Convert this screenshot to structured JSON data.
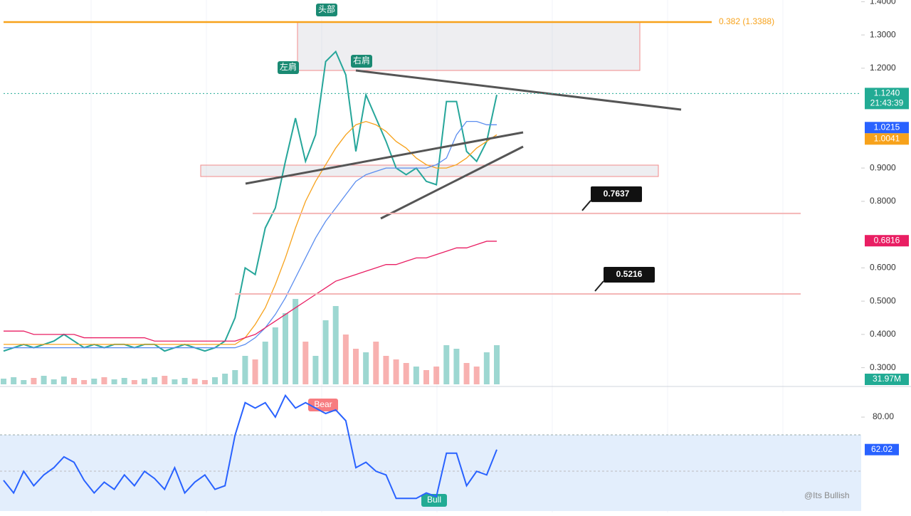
{
  "chart_data": {
    "type": "line",
    "series": [
      {
        "color": "#26a69a",
        "values": [
          0.35,
          0.36,
          0.37,
          0.36,
          0.37,
          0.38,
          0.4,
          0.38,
          0.36,
          0.37,
          0.36,
          0.37,
          0.37,
          0.36,
          0.37,
          0.37,
          0.35,
          0.36,
          0.37,
          0.36,
          0.35,
          0.36,
          0.38,
          0.45,
          0.6,
          0.58,
          0.72,
          0.78,
          0.92,
          1.05,
          0.92,
          1.0,
          1.22,
          1.25,
          1.18,
          0.95,
          1.12,
          1.05,
          0.98,
          0.9,
          0.88,
          0.9,
          0.86,
          0.85,
          1.1,
          1.1,
          0.95,
          0.92,
          0.98,
          1.12
        ]
      },
      {
        "color": "#f7a21b",
        "values": [
          0.37,
          0.37,
          0.37,
          0.37,
          0.37,
          0.37,
          0.37,
          0.37,
          0.37,
          0.37,
          0.37,
          0.37,
          0.37,
          0.37,
          0.37,
          0.37,
          0.37,
          0.37,
          0.37,
          0.37,
          0.37,
          0.37,
          0.37,
          0.37,
          0.39,
          0.43,
          0.48,
          0.55,
          0.63,
          0.72,
          0.8,
          0.86,
          0.91,
          0.96,
          1.0,
          1.03,
          1.04,
          1.03,
          1.01,
          0.98,
          0.96,
          0.93,
          0.91,
          0.9,
          0.9,
          0.91,
          0.93,
          0.96,
          0.98,
          1.0
        ]
      },
      {
        "color": "#5b8def",
        "values": [
          0.36,
          0.36,
          0.36,
          0.36,
          0.36,
          0.36,
          0.36,
          0.36,
          0.36,
          0.36,
          0.36,
          0.36,
          0.36,
          0.36,
          0.36,
          0.36,
          0.36,
          0.36,
          0.36,
          0.36,
          0.36,
          0.36,
          0.36,
          0.36,
          0.37,
          0.39,
          0.42,
          0.46,
          0.51,
          0.57,
          0.63,
          0.69,
          0.74,
          0.78,
          0.82,
          0.86,
          0.88,
          0.89,
          0.9,
          0.9,
          0.9,
          0.9,
          0.9,
          0.91,
          0.93,
          1.0,
          1.04,
          1.04,
          1.03,
          1.03
        ]
      },
      {
        "color": "#e91e63",
        "values": [
          0.41,
          0.41,
          0.41,
          0.4,
          0.4,
          0.4,
          0.4,
          0.4,
          0.39,
          0.39,
          0.39,
          0.39,
          0.39,
          0.39,
          0.39,
          0.38,
          0.38,
          0.38,
          0.38,
          0.38,
          0.38,
          0.38,
          0.38,
          0.38,
          0.39,
          0.4,
          0.42,
          0.44,
          0.46,
          0.48,
          0.5,
          0.52,
          0.54,
          0.56,
          0.57,
          0.58,
          0.59,
          0.6,
          0.61,
          0.61,
          0.62,
          0.63,
          0.63,
          0.64,
          0.65,
          0.66,
          0.66,
          0.67,
          0.68,
          0.68
        ]
      }
    ],
    "ylim": [
      0.25,
      1.405
    ],
    "yticks": [
      {
        "value": 1.4,
        "label": "1.4000"
      },
      {
        "value": 1.3,
        "label": "1.3000"
      },
      {
        "value": 1.2,
        "label": "1.2000"
      },
      {
        "value": 0.9,
        "label": "0.9000"
      },
      {
        "value": 0.8,
        "label": "0.8000"
      },
      {
        "value": 0.6,
        "label": "0.6000"
      },
      {
        "value": 0.5,
        "label": "0.5000"
      },
      {
        "value": 0.4,
        "label": "0.4000"
      },
      {
        "value": 0.3,
        "label": "0.3000"
      }
    ],
    "price_badges": [
      {
        "value": 1.124,
        "label": "1.1240",
        "sublabel": "21:43:39",
        "color": "#22ab94"
      },
      {
        "value": 1.0215,
        "label": "1.0215",
        "color": "#2962ff"
      },
      {
        "value": 1.0041,
        "label": "1.0041",
        "color": "#f7a21b"
      },
      {
        "value": 0.6816,
        "label": "0.6816",
        "color": "#e91e63"
      }
    ],
    "levels": [
      {
        "value": 1.3388,
        "label": "0.382 (1.3388)",
        "color": "#f7a21b"
      },
      {
        "value": 0.7637,
        "label": "0.7637",
        "color": "#f4b6b6"
      },
      {
        "value": 0.5216,
        "label": "0.5216",
        "color": "#f4b6b6"
      }
    ],
    "annotations": [
      "头部",
      "左肩",
      "右肩"
    ],
    "volume": {
      "up_color": "#26a69a",
      "down_color": "#ef5350",
      "y2lim": [
        0,
        150
      ],
      "values": [
        8,
        10,
        6,
        9,
        12,
        7,
        11,
        9,
        6,
        8,
        10,
        7,
        9,
        6,
        8,
        10,
        12,
        7,
        9,
        8,
        6,
        10,
        15,
        20,
        40,
        35,
        60,
        80,
        100,
        120,
        60,
        40,
        90,
        110,
        70,
        50,
        45,
        60,
        40,
        35,
        30,
        25,
        20,
        25,
        55,
        50,
        30,
        25,
        45,
        55
      ],
      "badge": {
        "value": 31.97,
        "label": "31.97M",
        "color": "#22ab94"
      }
    },
    "rsi": {
      "color": "#2962ff",
      "ylim": [
        28,
        95
      ],
      "yticks": [
        {
          "value": 80,
          "label": "80.00"
        }
      ],
      "values": [
        45,
        38,
        50,
        42,
        48,
        52,
        58,
        55,
        45,
        38,
        44,
        40,
        48,
        42,
        50,
        46,
        40,
        52,
        38,
        44,
        48,
        40,
        42,
        70,
        88,
        85,
        88,
        80,
        92,
        85,
        88,
        85,
        82,
        84,
        78,
        52,
        55,
        50,
        48,
        35,
        35,
        35,
        38,
        36,
        60,
        60,
        42,
        50,
        48,
        62
      ],
      "badge": {
        "value": 62.02,
        "label": "62.02",
        "color": "#2962ff"
      },
      "signals": [
        "Bear",
        "Bull"
      ]
    },
    "watermark": "@Its Bullish"
  }
}
